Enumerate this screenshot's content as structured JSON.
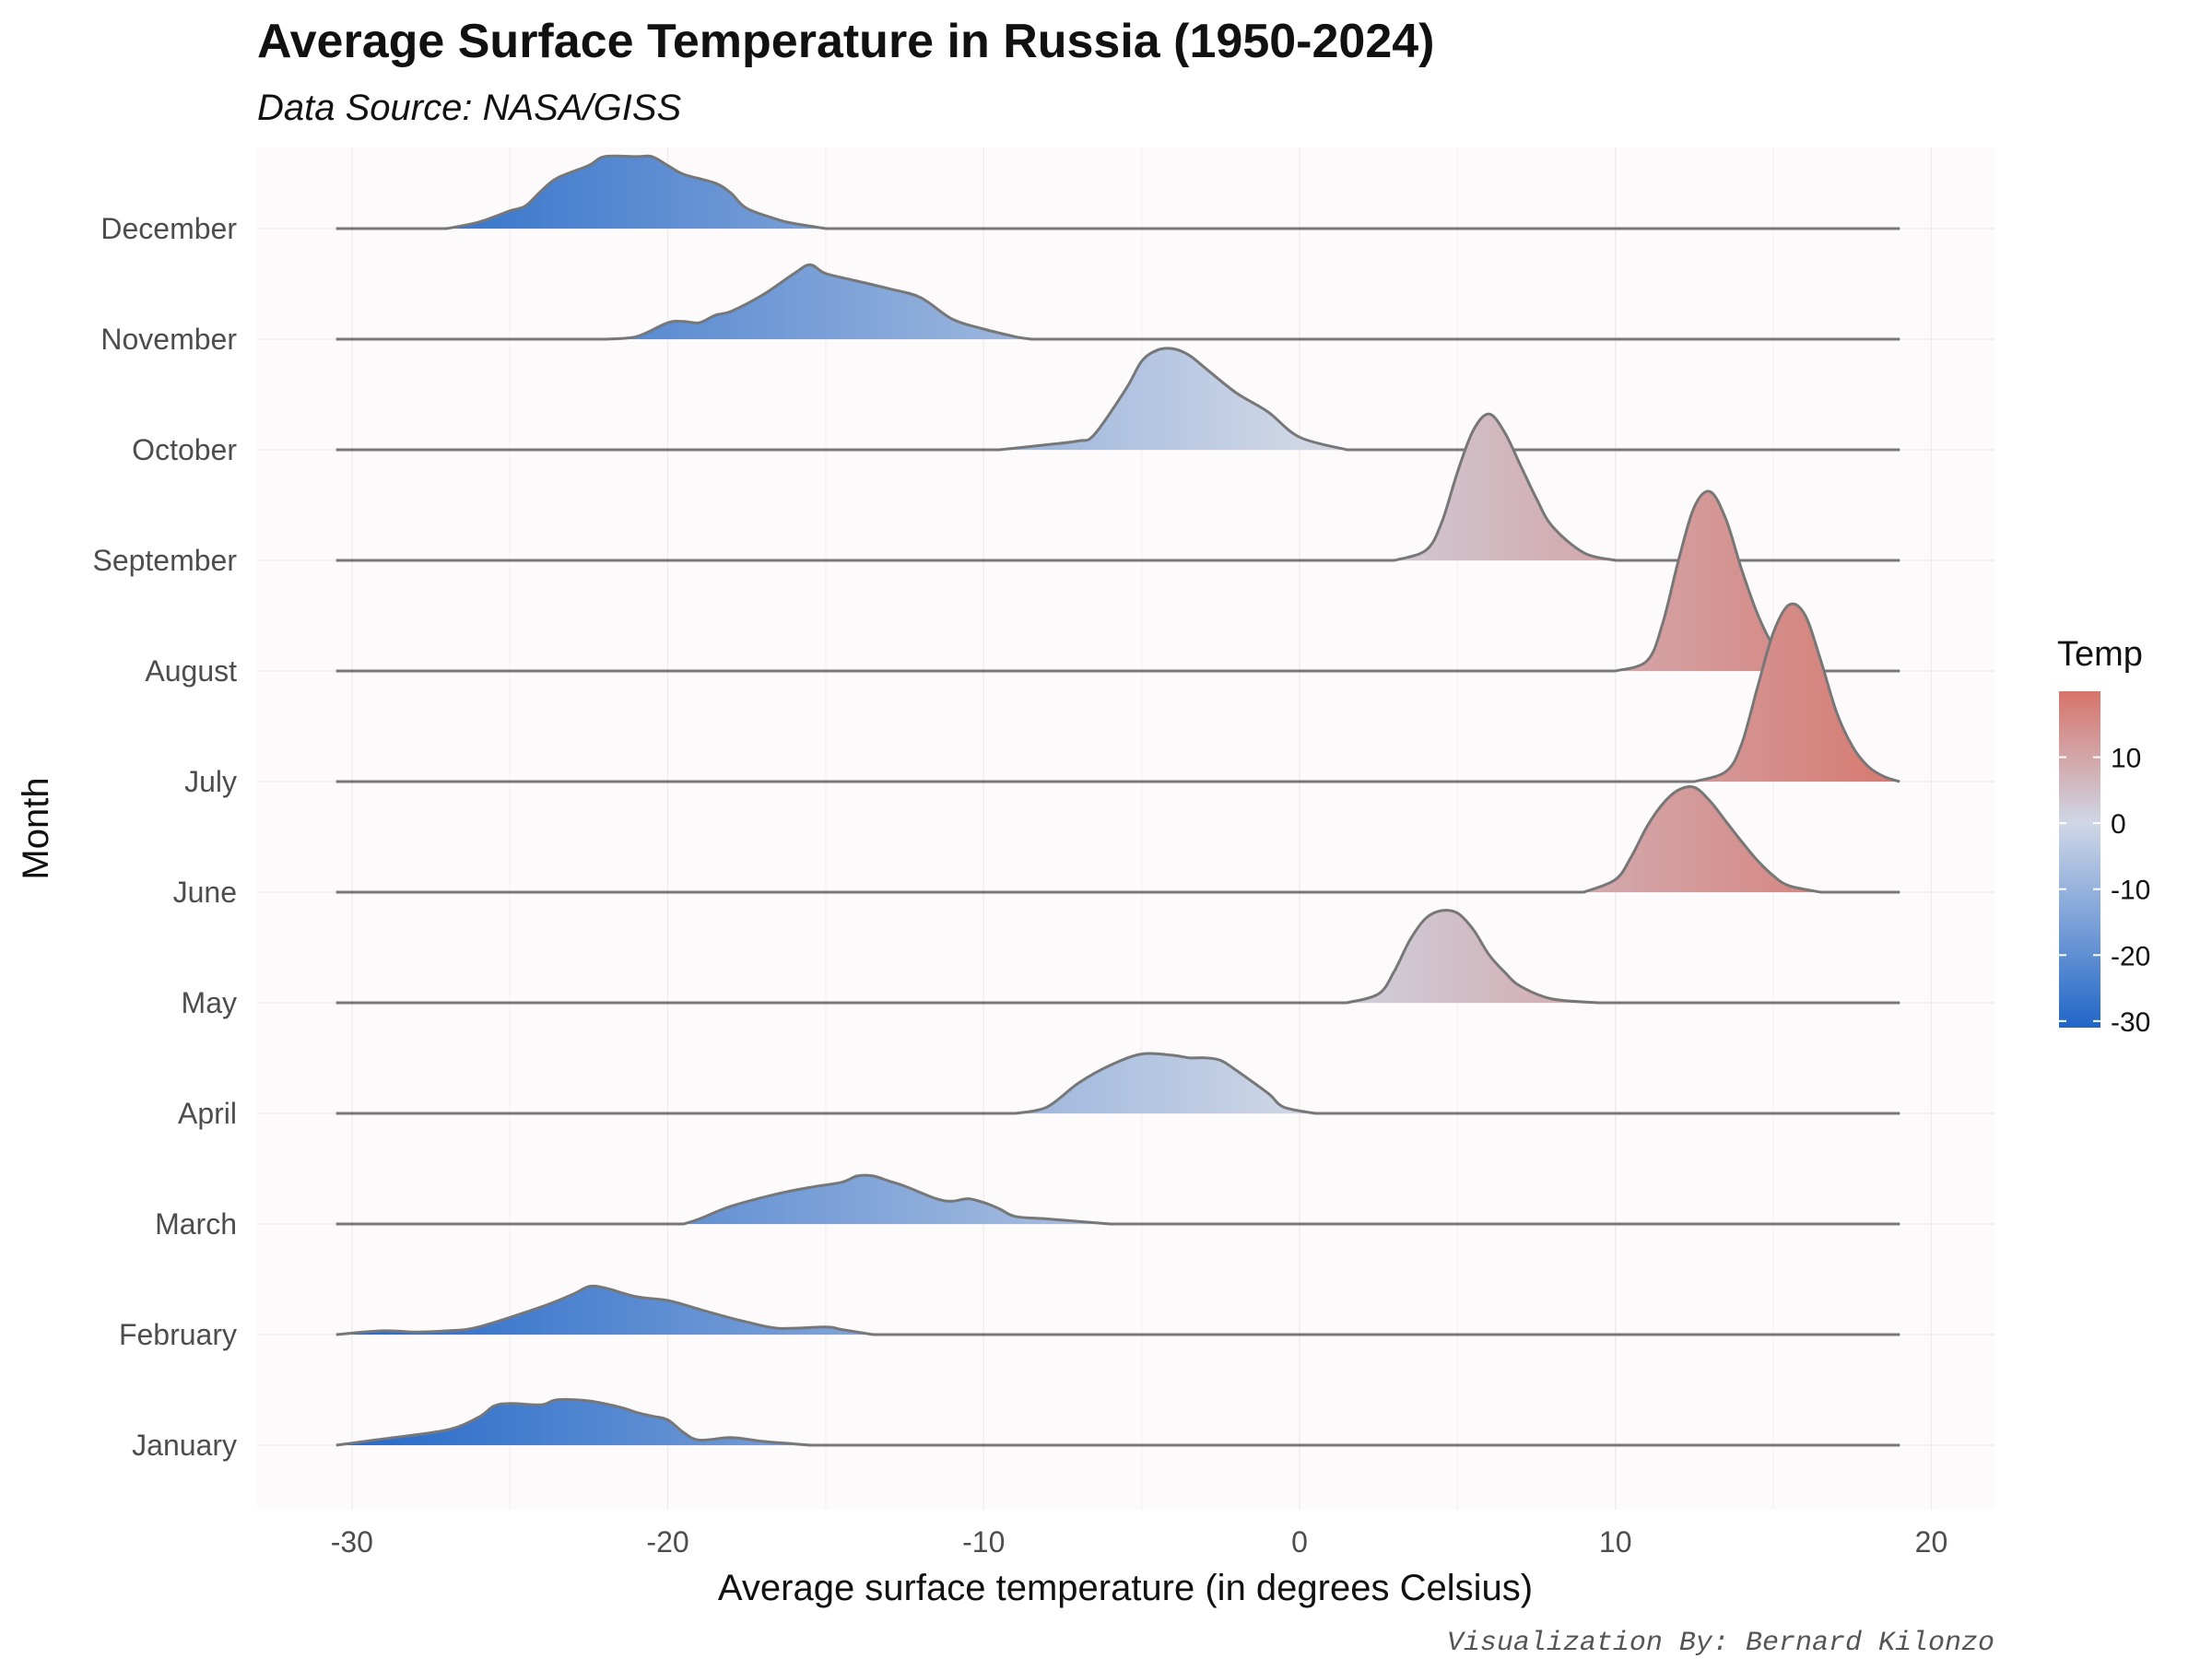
{
  "chart_data": {
    "type": "ridgeline",
    "title": "Average Surface Temperature in Russia (1950-2024)",
    "subtitle": "Data Source: NASA/GISS",
    "xlabel": "Average surface temperature (in degrees Celsius)",
    "ylabel": "Month",
    "caption": "Visualization By: Bernard Kilonzo",
    "xlim": [
      -33,
      22
    ],
    "x_ticks": [
      -30,
      -20,
      -10,
      0,
      10,
      20
    ],
    "x_tick_labels": [
      "-30",
      "-20",
      "-10",
      "0",
      "10",
      "20"
    ],
    "baseline_range": [
      -30.5,
      19
    ],
    "grid": true,
    "background": "#fcfafa",
    "fill_scale": {
      "title": "Temp",
      "low_color": "#2166c8",
      "mid_color": "#cfd7e6",
      "high_color": "#d7746a",
      "min": -31,
      "mid": 0,
      "max": 20,
      "breaks": [
        10,
        0,
        -10,
        -20,
        -30
      ],
      "break_labels": [
        "10",
        "0",
        "-10",
        "-20",
        "-30"
      ]
    },
    "series": [
      {
        "name": "January",
        "x": [
          -30.5,
          -29,
          -27,
          -26,
          -25.5,
          -25,
          -24,
          -23.5,
          -22.5,
          -21.5,
          -21,
          -20.5,
          -20,
          -19.5,
          -19,
          -18,
          -17,
          -16,
          -15.5
        ],
        "density": [
          0,
          0.05,
          0.12,
          0.22,
          0.31,
          0.33,
          0.32,
          0.36,
          0.35,
          0.3,
          0.26,
          0.23,
          0.2,
          0.1,
          0.04,
          0.06,
          0.03,
          0.01,
          0
        ]
      },
      {
        "name": "February",
        "x": [
          -30.5,
          -29,
          -28,
          -27,
          -26,
          -24,
          -23,
          -22.5,
          -22,
          -21,
          -20,
          -19,
          -18,
          -17.5,
          -16.5,
          -15,
          -14.5,
          -13.5
        ],
        "density": [
          0,
          0.03,
          0.02,
          0.03,
          0.06,
          0.22,
          0.32,
          0.38,
          0.37,
          0.3,
          0.27,
          0.2,
          0.13,
          0.1,
          0.05,
          0.06,
          0.04,
          0
        ]
      },
      {
        "name": "March",
        "x": [
          -19.5,
          -19,
          -18,
          -16.5,
          -15.5,
          -14.5,
          -14,
          -13.5,
          -13,
          -12.5,
          -11.5,
          -11,
          -10.5,
          -10,
          -9.5,
          -9,
          -8,
          -7,
          -6
        ],
        "density": [
          0,
          0.04,
          0.14,
          0.24,
          0.29,
          0.33,
          0.38,
          0.38,
          0.34,
          0.3,
          0.2,
          0.18,
          0.2,
          0.17,
          0.12,
          0.06,
          0.04,
          0.02,
          0
        ]
      },
      {
        "name": "April",
        "x": [
          -9,
          -8,
          -7,
          -6,
          -5,
          -4,
          -3.5,
          -3,
          -2.5,
          -2,
          -1,
          -0.5,
          0.5
        ],
        "density": [
          0,
          0.05,
          0.24,
          0.38,
          0.47,
          0.46,
          0.44,
          0.44,
          0.42,
          0.34,
          0.16,
          0.05,
          0
        ]
      },
      {
        "name": "May",
        "x": [
          1.5,
          2.5,
          3,
          3.5,
          4,
          4.5,
          5,
          5.5,
          6,
          6.5,
          7,
          8,
          9.5
        ],
        "density": [
          0,
          0.07,
          0.25,
          0.5,
          0.67,
          0.73,
          0.71,
          0.58,
          0.38,
          0.24,
          0.13,
          0.03,
          0
        ]
      },
      {
        "name": "June",
        "x": [
          9,
          10,
          10.5,
          11,
          11.5,
          12,
          12.5,
          13,
          13.5,
          14,
          14.5,
          15,
          15.5,
          16.5
        ],
        "density": [
          0,
          0.1,
          0.28,
          0.52,
          0.7,
          0.81,
          0.83,
          0.72,
          0.56,
          0.4,
          0.25,
          0.13,
          0.05,
          0
        ]
      },
      {
        "name": "July",
        "x": [
          12.5,
          13.5,
          14,
          14.5,
          15,
          15.5,
          16,
          16.5,
          17,
          17.5,
          18,
          18.5,
          19
        ],
        "density": [
          0,
          0.08,
          0.3,
          0.75,
          1.18,
          1.4,
          1.32,
          0.96,
          0.55,
          0.28,
          0.12,
          0.04,
          0
        ]
      },
      {
        "name": "August",
        "x": [
          10,
          11,
          11.5,
          12,
          12.5,
          13,
          13.5,
          14,
          14.5,
          15,
          15.5,
          16
        ],
        "density": [
          0,
          0.08,
          0.38,
          0.88,
          1.3,
          1.42,
          1.2,
          0.8,
          0.45,
          0.2,
          0.07,
          0
        ],
        "z_order": "behind_july"
      },
      {
        "name": "September",
        "x": [
          3,
          4,
          4.5,
          5,
          5.5,
          6,
          6.5,
          7,
          7.5,
          8,
          9,
          10
        ],
        "density": [
          0,
          0.08,
          0.3,
          0.7,
          1.03,
          1.16,
          1.01,
          0.75,
          0.49,
          0.27,
          0.06,
          0
        ]
      },
      {
        "name": "October",
        "x": [
          -9.5,
          -8,
          -7,
          -6.5,
          -5.5,
          -5,
          -4.5,
          -4,
          -3.5,
          -3,
          -2,
          -1,
          0,
          1.5
        ],
        "density": [
          0,
          0.04,
          0.07,
          0.12,
          0.48,
          0.7,
          0.79,
          0.8,
          0.75,
          0.65,
          0.45,
          0.3,
          0.1,
          0
        ]
      },
      {
        "name": "November",
        "x": [
          -22,
          -21,
          -20,
          -19.5,
          -19,
          -18.5,
          -18,
          -17,
          -16,
          -15.5,
          -15,
          -14,
          -13,
          -12,
          -11,
          -10,
          -9,
          -8.5
        ],
        "density": [
          0,
          0.02,
          0.13,
          0.14,
          0.13,
          0.19,
          0.22,
          0.35,
          0.52,
          0.59,
          0.52,
          0.46,
          0.4,
          0.33,
          0.16,
          0.08,
          0.02,
          0
        ]
      },
      {
        "name": "December",
        "x": [
          -27,
          -26,
          -25,
          -24.5,
          -24,
          -23.5,
          -22.5,
          -22,
          -21,
          -20.5,
          -20,
          -19.5,
          -18.5,
          -18,
          -17.5,
          -16.5,
          -16,
          -15
        ],
        "density": [
          0,
          0.05,
          0.14,
          0.18,
          0.3,
          0.4,
          0.5,
          0.57,
          0.57,
          0.57,
          0.5,
          0.43,
          0.36,
          0.28,
          0.16,
          0.07,
          0.04,
          0
        ]
      }
    ]
  }
}
